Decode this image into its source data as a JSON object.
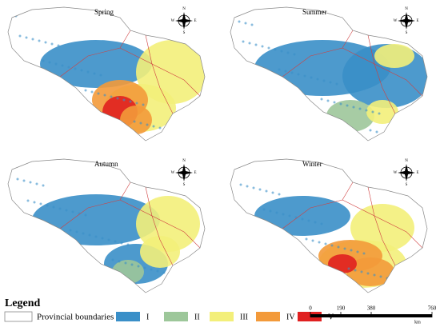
{
  "panels": [
    {
      "title": "Spring"
    },
    {
      "title": "Summer"
    },
    {
      "title": "Autumn"
    },
    {
      "title": "Winter"
    }
  ],
  "compass": {
    "n": "N",
    "s": "S",
    "e": "E",
    "w": "W"
  },
  "legend": {
    "title": "Legend",
    "items": [
      {
        "label": "Provincial boundaries",
        "color": "#ffffff"
      },
      {
        "label": "I",
        "color": "#3a8fc8"
      },
      {
        "label": "II",
        "color": "#9dc79a"
      },
      {
        "label": "III",
        "color": "#f3ef7a"
      },
      {
        "label": "IV",
        "color": "#f39a3a"
      },
      {
        "label": "V",
        "color": "#e02020"
      }
    ]
  },
  "scale": {
    "ticks": [
      0,
      190,
      380,
      760
    ],
    "unit": "km"
  }
}
